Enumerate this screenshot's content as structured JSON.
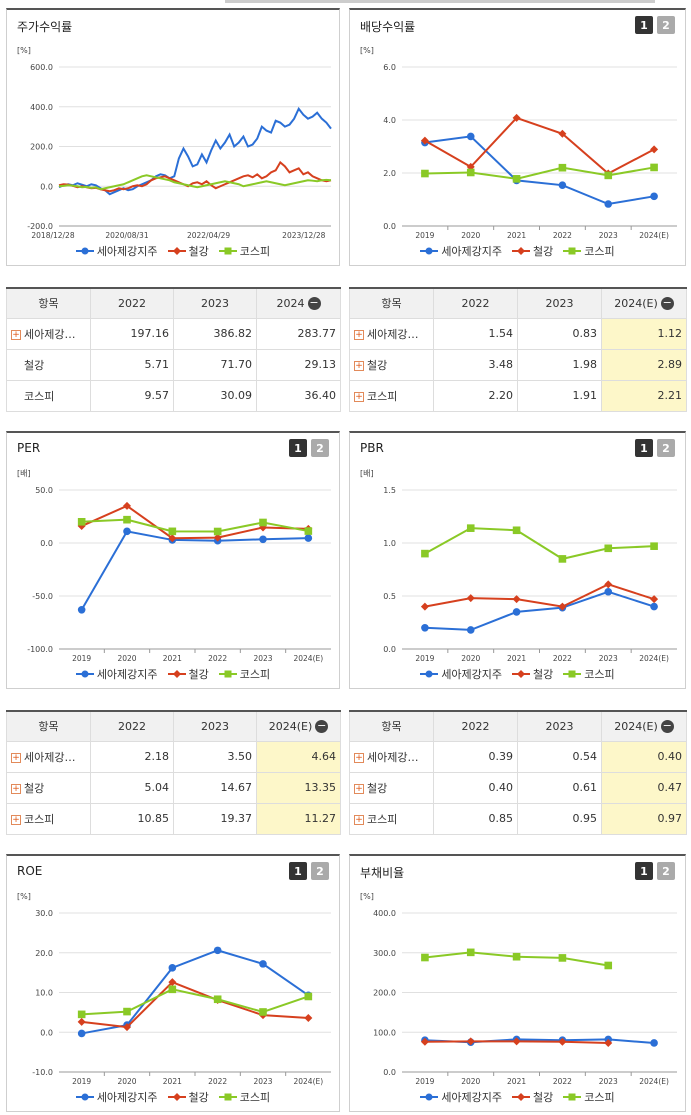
{
  "legend": [
    "세아제강지주",
    "철강",
    "코스피"
  ],
  "colors": {
    "s1": "#2b6fd6",
    "s2": "#d6401e",
    "s3": "#8ac926",
    "grid": "#e0e0e0",
    "hl": "#fdf7c9"
  },
  "panels": [
    {
      "id": "stock",
      "title": "주가수익률",
      "buttons": [],
      "chart_data": {
        "type": "line",
        "unit": "[%]",
        "ylim": [
          -200,
          600
        ],
        "yticks": [
          "600.0",
          "400.0",
          "200.0",
          "0.0",
          "-200.0"
        ],
        "xticks": [
          "2018/12/28",
          "2020/08/31",
          "2022/04/29",
          "2023/12/28"
        ],
        "xn": 60,
        "series": [
          {
            "name": "세아제강지주",
            "values": [
              -5,
              5,
              10,
              5,
              15,
              8,
              0,
              10,
              5,
              -10,
              -20,
              -40,
              -30,
              -20,
              -10,
              -20,
              -15,
              0,
              10,
              20,
              30,
              50,
              60,
              55,
              40,
              50,
              140,
              190,
              150,
              100,
              110,
              160,
              120,
              180,
              230,
              190,
              220,
              260,
              200,
              220,
              250,
              200,
              210,
              240,
              300,
              280,
              270,
              330,
              320,
              300,
              310,
              340,
              390,
              360,
              340,
              350,
              370,
              340,
              320,
              290
            ]
          },
          {
            "name": "철강",
            "values": [
              5,
              10,
              8,
              2,
              -5,
              0,
              -5,
              -10,
              -8,
              -15,
              -20,
              -25,
              -20,
              -10,
              -15,
              -10,
              0,
              5,
              0,
              10,
              30,
              40,
              45,
              50,
              40,
              30,
              20,
              10,
              0,
              15,
              20,
              10,
              25,
              5,
              -10,
              0,
              10,
              20,
              30,
              40,
              50,
              55,
              45,
              60,
              40,
              50,
              70,
              80,
              120,
              100,
              70,
              80,
              90,
              60,
              70,
              50,
              40,
              30,
              25,
              30
            ]
          },
          {
            "name": "코스피",
            "values": [
              0,
              2,
              5,
              3,
              0,
              -5,
              -3,
              -8,
              -5,
              -15,
              -10,
              -5,
              0,
              5,
              10,
              20,
              30,
              40,
              50,
              55,
              50,
              45,
              40,
              35,
              30,
              20,
              15,
              10,
              5,
              0,
              -5,
              0,
              5,
              10,
              15,
              20,
              25,
              20,
              15,
              10,
              0,
              5,
              10,
              15,
              20,
              25,
              20,
              15,
              10,
              5,
              10,
              15,
              20,
              25,
              30,
              28,
              25,
              30,
              32,
              30
            ]
          }
        ]
      }
    },
    {
      "id": "div",
      "title": "배당수익률",
      "buttons": [
        "1",
        "2"
      ],
      "chart_data": {
        "type": "line",
        "unit": "[%]",
        "ylim": [
          0,
          6
        ],
        "yticks": [
          "6.0",
          "4.0",
          "2.0",
          "0.0"
        ],
        "categories": [
          "2019",
          "2020",
          "2021",
          "2022",
          "2023",
          "2024(E)"
        ],
        "series": [
          {
            "name": "세아제강지주",
            "values": [
              3.15,
              3.38,
              1.72,
              1.54,
              0.83,
              1.12
            ]
          },
          {
            "name": "철강",
            "values": [
              3.22,
              2.23,
              4.08,
              3.48,
              1.98,
              2.89
            ]
          },
          {
            "name": "코스피",
            "values": [
              1.98,
              2.02,
              1.78,
              2.2,
              1.91,
              2.21
            ]
          }
        ]
      }
    },
    {
      "id": "per",
      "title": "PER",
      "buttons": [
        "1",
        "2"
      ],
      "chart_data": {
        "type": "line",
        "unit": "[배]",
        "ylim": [
          -100,
          50
        ],
        "yticks": [
          "50.0",
          "0.0",
          "-50.0",
          "-100.0"
        ],
        "categories": [
          "2019",
          "2020",
          "2021",
          "2022",
          "2023",
          "2024(E)"
        ],
        "series": [
          {
            "name": "세아제강지주",
            "values": [
              -63,
              11,
              2.9,
              2.18,
              3.5,
              4.64
            ]
          },
          {
            "name": "철강",
            "values": [
              16,
              35,
              4.5,
              5.04,
              14.67,
              13.35
            ]
          },
          {
            "name": "코스피",
            "values": [
              20,
              22,
              11,
              10.85,
              19.37,
              11.27
            ]
          }
        ]
      }
    },
    {
      "id": "pbr",
      "title": "PBR",
      "buttons": [
        "1",
        "2"
      ],
      "chart_data": {
        "type": "line",
        "unit": "[배]",
        "ylim": [
          0,
          1.5
        ],
        "yticks": [
          "1.5",
          "1.0",
          "0.5",
          "0.0"
        ],
        "categories": [
          "2019",
          "2020",
          "2021",
          "2022",
          "2023",
          "2024(E)"
        ],
        "series": [
          {
            "name": "세아제강지주",
            "values": [
              0.2,
              0.18,
              0.35,
              0.39,
              0.54,
              0.4
            ]
          },
          {
            "name": "철강",
            "values": [
              0.4,
              0.48,
              0.47,
              0.4,
              0.61,
              0.47
            ]
          },
          {
            "name": "코스피",
            "values": [
              0.9,
              1.14,
              1.12,
              0.85,
              0.95,
              0.97
            ]
          }
        ]
      }
    },
    {
      "id": "roe",
      "title": "ROE",
      "buttons": [
        "1",
        "2"
      ],
      "chart_data": {
        "type": "line",
        "unit": "[%]",
        "ylim": [
          -10,
          30
        ],
        "yticks": [
          "30.0",
          "20.0",
          "10.0",
          "0.0",
          "-10.0"
        ],
        "categories": [
          "2019",
          "2020",
          "2021",
          "2022",
          "2023",
          "2024(E)"
        ],
        "series": [
          {
            "name": "세아제강지주",
            "values": [
              -0.3,
              1.8,
              16.2,
              20.6,
              17.2,
              9.3
            ]
          },
          {
            "name": "철강",
            "values": [
              2.6,
              1.3,
              12.6,
              8.1,
              4.3,
              3.6
            ]
          },
          {
            "name": "코스피",
            "values": [
              4.5,
              5.2,
              10.8,
              8.3,
              5.1,
              9.0
            ]
          }
        ]
      }
    },
    {
      "id": "debt",
      "title": "부채비율",
      "buttons": [
        "1",
        "2"
      ],
      "chart_data": {
        "type": "line",
        "unit": "[%]",
        "ylim": [
          0,
          400
        ],
        "yticks": [
          "400.0",
          "300.0",
          "200.0",
          "100.0",
          "0.0"
        ],
        "categories": [
          "2019",
          "2020",
          "2021",
          "2022",
          "2023",
          "2024(E)"
        ],
        "series": [
          {
            "name": "세아제강지주",
            "values": [
              80,
              75,
              82,
              80,
              82,
              73
            ]
          },
          {
            "name": "철강",
            "values": [
              76,
              77,
              77,
              76,
              73,
              null
            ]
          },
          {
            "name": "코스피",
            "values": [
              288,
              301,
              290,
              287,
              268,
              null
            ]
          }
        ]
      }
    }
  ],
  "tables": [
    {
      "id": "t-stock",
      "headers": [
        "항목",
        "2022",
        "2023",
        "2024"
      ],
      "minus": true,
      "hl": false,
      "rows": [
        [
          "세아제강…",
          "197.16",
          "386.82",
          "283.77"
        ],
        [
          "철강",
          "5.71",
          "71.70",
          "29.13"
        ],
        [
          "코스피",
          "9.57",
          "30.09",
          "36.40"
        ]
      ],
      "plus": [
        true,
        false,
        false
      ]
    },
    {
      "id": "t-div",
      "headers": [
        "항목",
        "2022",
        "2023",
        "2024(E)"
      ],
      "minus": true,
      "hl": true,
      "rows": [
        [
          "세아제강…",
          "1.54",
          "0.83",
          "1.12"
        ],
        [
          "철강",
          "3.48",
          "1.98",
          "2.89"
        ],
        [
          "코스피",
          "2.20",
          "1.91",
          "2.21"
        ]
      ],
      "plus": [
        true,
        true,
        true
      ]
    },
    {
      "id": "t-per",
      "headers": [
        "항목",
        "2022",
        "2023",
        "2024(E)"
      ],
      "minus": true,
      "hl": true,
      "rows": [
        [
          "세아제강…",
          "2.18",
          "3.50",
          "4.64"
        ],
        [
          "철강",
          "5.04",
          "14.67",
          "13.35"
        ],
        [
          "코스피",
          "10.85",
          "19.37",
          "11.27"
        ]
      ],
      "plus": [
        true,
        true,
        true
      ]
    },
    {
      "id": "t-pbr",
      "headers": [
        "항목",
        "2022",
        "2023",
        "2024(E)"
      ],
      "minus": true,
      "hl": true,
      "rows": [
        [
          "세아제강…",
          "0.39",
          "0.54",
          "0.40"
        ],
        [
          "철강",
          "0.40",
          "0.61",
          "0.47"
        ],
        [
          "코스피",
          "0.85",
          "0.95",
          "0.97"
        ]
      ],
      "plus": [
        true,
        true,
        true
      ]
    }
  ]
}
